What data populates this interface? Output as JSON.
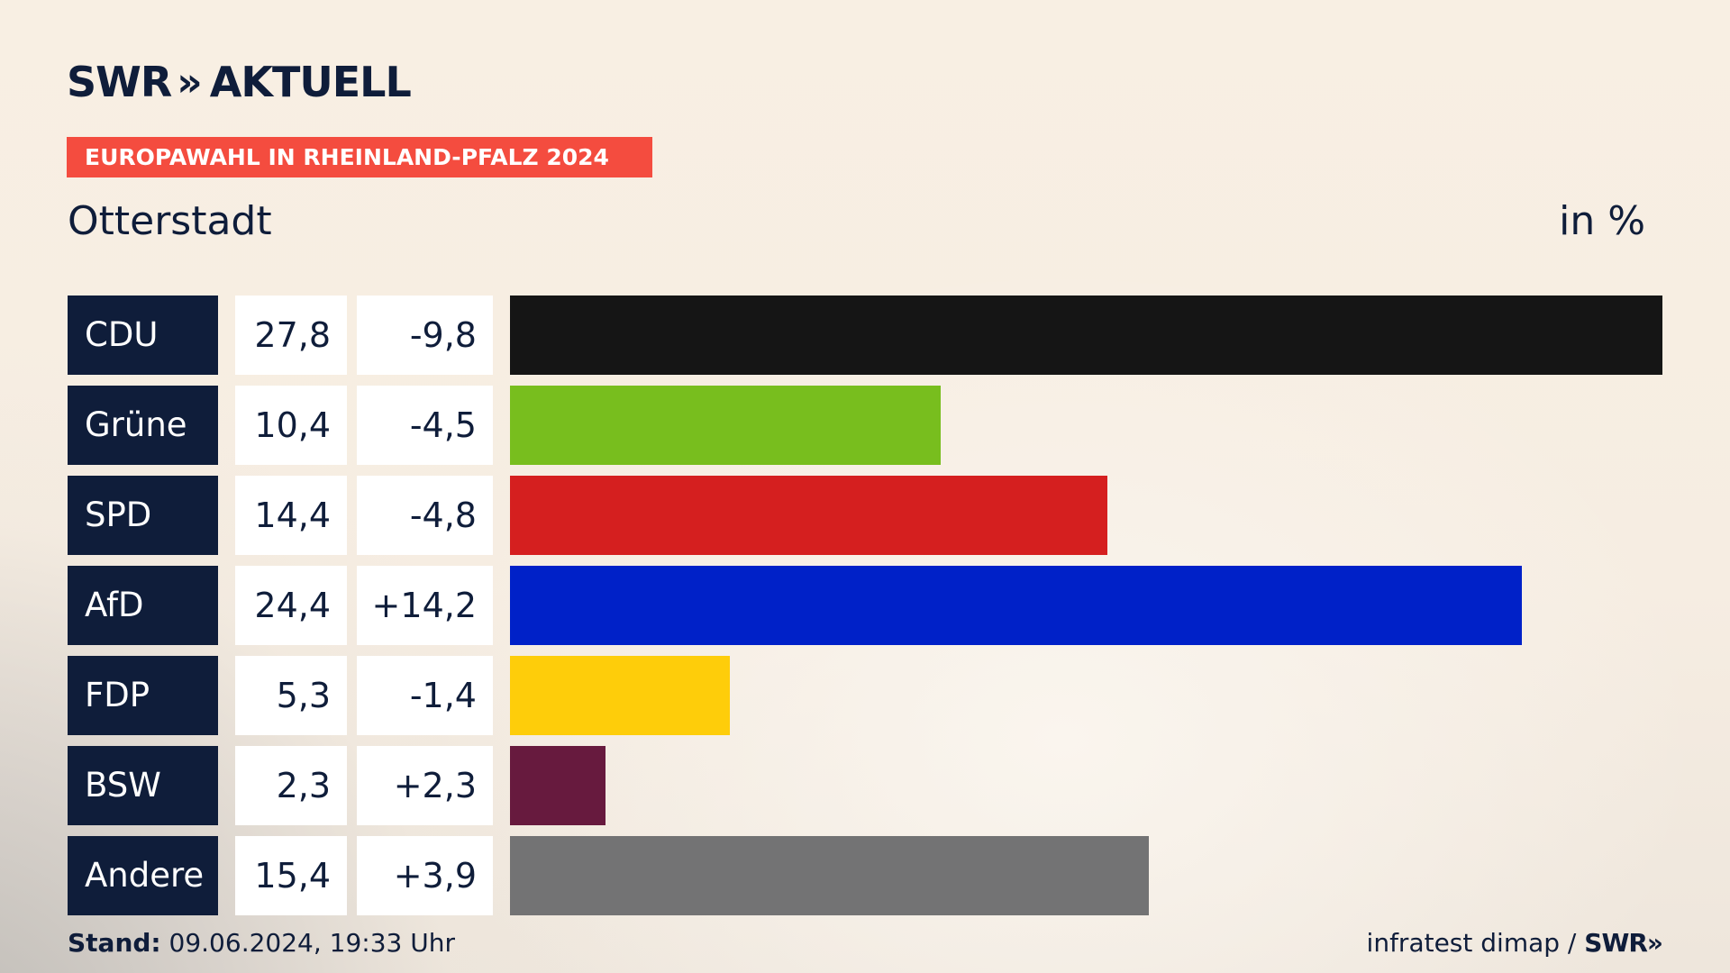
{
  "brand": {
    "name": "SWR",
    "arrows": "»",
    "product": "AKTUELL"
  },
  "banner": "EUROPAWAHL IN RHEINLAND-PFALZ 2024",
  "location": "Otterstadt",
  "unit": "in %",
  "footer": {
    "stand_label": "Stand:",
    "stand_value": "09.06.2024, 19:33 Uhr",
    "source": "infratest dimap /",
    "source_brand": "SWR",
    "source_arrows": "»"
  },
  "colors": {
    "navy": "#0f1d3a",
    "banner": "#f44c3f"
  },
  "chart_data": {
    "type": "bar",
    "orientation": "horizontal",
    "title": "Otterstadt",
    "unit": "in %",
    "categories": [
      "CDU",
      "Grüne",
      "SPD",
      "AfD",
      "FDP",
      "BSW",
      "Andere"
    ],
    "values": [
      27.8,
      10.4,
      14.4,
      24.4,
      5.3,
      2.3,
      15.4
    ],
    "value_labels": [
      "27,8",
      "10,4",
      "14,4",
      "24,4",
      "5,3",
      "2,3",
      "15,4"
    ],
    "diff_labels": [
      "-9,8",
      "-4,5",
      "-4,8",
      "+14,2",
      "-1,4",
      "+2,3",
      "+3,9"
    ],
    "colors": [
      "#151515",
      "#78be1e",
      "#d51f1f",
      "#0021c8",
      "#fecd0a",
      "#671a3e",
      "#737374"
    ],
    "xlim": [
      0,
      27.8
    ]
  }
}
